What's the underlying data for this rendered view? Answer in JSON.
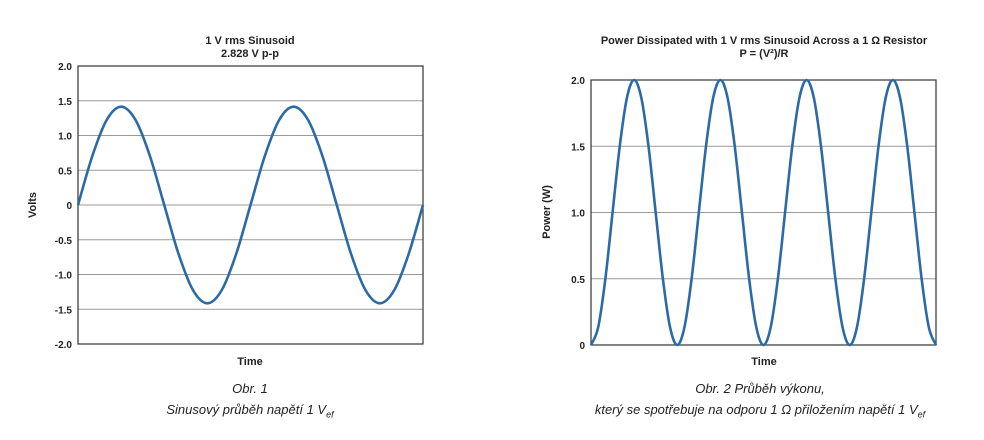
{
  "chart_data": [
    {
      "type": "line",
      "title": "1 V rms Sinusoid",
      "subtitle": "2.828 V p-p",
      "xlabel": "Time",
      "ylabel": "Volts",
      "ylim": [
        -2.0,
        2.0
      ],
      "yticks": [
        "2.0",
        "1.5",
        "1.0",
        "0.5",
        "0",
        "-0.5",
        "-1.0",
        "-1.5",
        "-2.0"
      ],
      "ytick_values": [
        2.0,
        1.5,
        1.0,
        0.5,
        0,
        -0.5,
        -1.0,
        -1.5,
        -2.0
      ],
      "grid": true,
      "color": "#2c6aa6",
      "x_phase_deg": [
        0,
        30,
        60,
        90,
        120,
        150,
        180,
        210,
        240,
        270,
        300,
        330,
        360,
        390,
        420,
        450,
        480,
        510,
        540,
        570,
        600,
        630,
        660,
        690,
        720
      ],
      "y": [
        0,
        0.707,
        1.225,
        1.414,
        1.225,
        0.707,
        0,
        -0.707,
        -1.225,
        -1.414,
        -1.225,
        -0.707,
        0,
        0.707,
        1.225,
        1.414,
        1.225,
        0.707,
        0,
        -0.707,
        -1.225,
        -1.414,
        -1.225,
        -0.707,
        0
      ]
    },
    {
      "type": "line",
      "title": "Power Dissipated with 1 V rms Sinusoid Across a 1 Ω Resistor",
      "subtitle": "P = (V²)/R",
      "xlabel": "Time",
      "ylabel": "Power (W)",
      "ylim": [
        0,
        2.0
      ],
      "yticks": [
        "2.0",
        "1.5",
        "1.0",
        "0.5",
        "0"
      ],
      "ytick_values": [
        2.0,
        1.5,
        1.0,
        0.5,
        0
      ],
      "grid": true,
      "color": "#2c6aa6",
      "x_phase_deg": [
        0,
        15,
        30,
        45,
        60,
        75,
        90,
        105,
        120,
        135,
        150,
        165,
        180,
        195,
        210,
        225,
        240,
        255,
        270,
        285,
        300,
        315,
        330,
        345,
        360,
        375,
        390,
        405,
        420,
        435,
        450,
        465,
        480,
        495,
        510,
        525,
        540,
        555,
        570,
        585,
        600,
        615,
        630,
        645,
        660,
        675,
        690,
        705,
        720
      ],
      "y": [
        0,
        0.134,
        0.5,
        1.0,
        1.5,
        1.866,
        2.0,
        1.866,
        1.5,
        1.0,
        0.5,
        0.134,
        0,
        0.134,
        0.5,
        1.0,
        1.5,
        1.866,
        2.0,
        1.866,
        1.5,
        1.0,
        0.5,
        0.134,
        0,
        0.134,
        0.5,
        1.0,
        1.5,
        1.866,
        2.0,
        1.866,
        1.5,
        1.0,
        0.5,
        0.134,
        0,
        0.134,
        0.5,
        1.0,
        1.5,
        1.866,
        2.0,
        1.866,
        1.5,
        1.0,
        0.5,
        0.134,
        0
      ]
    }
  ],
  "captions": {
    "fig1_line1": "Obr. 1",
    "fig1_line2": "Sinusový průběh napětí 1 V",
    "fig1_sub": "ef",
    "fig2_line1": "Obr. 2  Průběh výkonu,",
    "fig2_line2": "který se spotřebuje na odporu 1 Ω přiložením napětí 1 V",
    "fig2_sub": "ef"
  }
}
